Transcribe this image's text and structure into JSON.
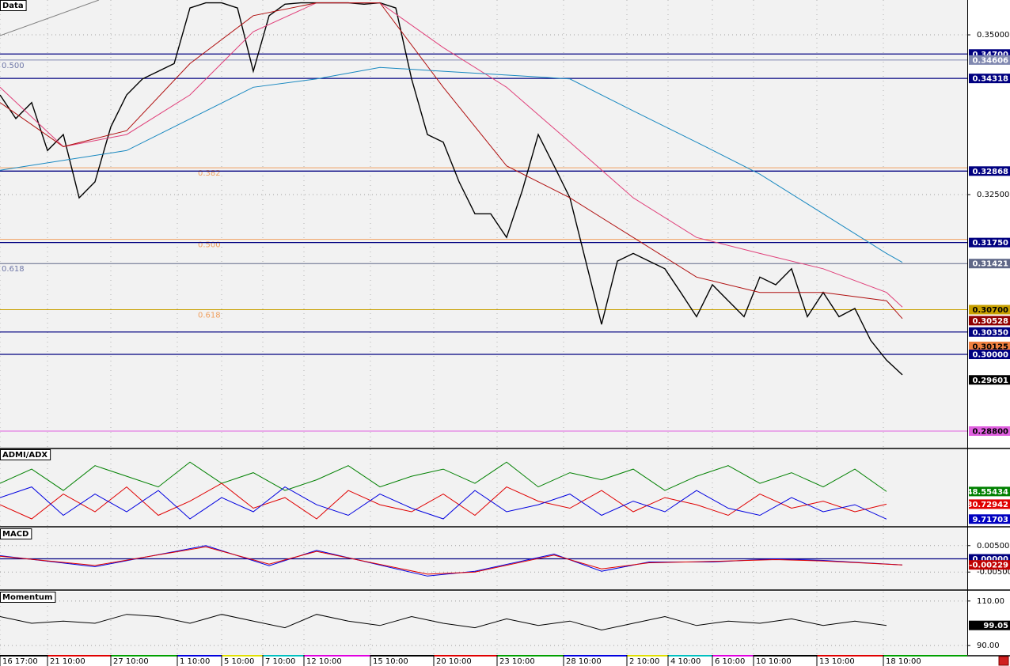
{
  "chart_data": [
    {
      "type": "line",
      "title": "Data",
      "xlim": [
        0,
        305.5
      ],
      "xticks": [
        {
          "value": 0,
          "label": "16 17:00"
        },
        {
          "value": 15,
          "label": "21 10:00"
        },
        {
          "value": 35,
          "label": "27 10:00"
        },
        {
          "value": 56,
          "label": "1 10:00"
        },
        {
          "value": 70,
          "label": "5 10:00"
        },
        {
          "value": 83,
          "label": "7 10:00"
        },
        {
          "value": 96,
          "label": "12 10:00"
        },
        {
          "value": 117,
          "label": "15 10:00"
        },
        {
          "value": 137,
          "label": "20 10:00"
        },
        {
          "value": 157,
          "label": "23 10:00"
        },
        {
          "value": 178,
          "label": "28 10:00"
        },
        {
          "value": 198,
          "label": "2 10:00"
        },
        {
          "value": 211,
          "label": "4 10:00"
        },
        {
          "value": 225,
          "label": "6 10:00"
        },
        {
          "value": 238,
          "label": "10 10:00"
        },
        {
          "value": 258,
          "label": "13 10:00"
        },
        {
          "value": 279,
          "label": "18 10:00"
        }
      ],
      "ylim": [
        0.2854,
        0.35545
      ],
      "yticks": [
        {
          "value": 0.35,
          "label": "0.35000"
        },
        {
          "value": 0.325,
          "label": "0.32500"
        }
      ],
      "grid": true,
      "x": [
        0,
        5,
        10,
        15,
        20,
        25,
        30,
        35,
        40,
        45,
        50,
        55,
        60,
        65,
        70,
        75,
        80,
        85,
        90,
        95,
        100,
        105,
        110,
        115,
        120,
        125,
        130,
        135,
        140,
        145,
        150,
        155,
        160,
        165,
        170,
        175,
        180,
        185,
        190,
        195,
        200,
        205,
        210,
        215,
        220,
        225,
        230,
        235,
        240,
        245,
        250,
        255,
        260,
        265,
        270,
        275,
        280,
        285
      ],
      "series": [
        {
          "color": "#000000",
          "values": [
            0.3406,
            0.3369,
            0.3394,
            0.3319,
            0.3344,
            0.3245,
            0.327,
            0.3356,
            0.3406,
            0.3431,
            0.3443,
            0.3455,
            0.3542,
            0.355,
            0.355,
            0.3542,
            0.3443,
            0.353,
            0.3548,
            0.355,
            0.355,
            0.355,
            0.355,
            0.3548,
            0.355,
            0.3542,
            0.3431,
            0.3344,
            0.3332,
            0.327,
            0.322,
            0.322,
            0.3183,
            0.3257,
            0.3344,
            0.3295,
            0.3245,
            0.3146,
            0.3047,
            0.3146,
            0.3158,
            0.3146,
            0.3134,
            0.3097,
            0.3059,
            0.3109,
            0.3084,
            0.3059,
            0.3121,
            0.3109,
            0.3134,
            0.3059,
            0.3097,
            0.3059,
            0.3072,
            0.3022,
            0.2991,
            0.2968
          ]
        },
        {
          "color": "#e0407a",
          "x": [
            0,
            20,
            40,
            60,
            80,
            100,
            120,
            140,
            160,
            180,
            200,
            220,
            240,
            260,
            280,
            285
          ],
          "values": [
            0.3418,
            0.3325,
            0.3344,
            0.3406,
            0.3505,
            0.355,
            0.355,
            0.348,
            0.3418,
            0.3332,
            0.3245,
            0.3183,
            0.3158,
            0.3134,
            0.3097,
            0.3074
          ]
        },
        {
          "color": "#b01010",
          "x": [
            0,
            20,
            40,
            60,
            80,
            100,
            120,
            140,
            160,
            180,
            200,
            220,
            240,
            260,
            280,
            285
          ],
          "values": [
            0.3394,
            0.3325,
            0.335,
            0.3455,
            0.353,
            0.355,
            0.355,
            0.3418,
            0.3295,
            0.3245,
            0.3183,
            0.3121,
            0.3097,
            0.3097,
            0.3084,
            0.3056
          ]
        },
        {
          "color": "#1888c0",
          "x": [
            0,
            40,
            80,
            100,
            120,
            140,
            160,
            180,
            200,
            220,
            240,
            260,
            280,
            285
          ],
          "values": [
            0.3288,
            0.3319,
            0.3418,
            0.3431,
            0.3449,
            0.3443,
            0.3437,
            0.3431,
            0.3381,
            0.3332,
            0.3282,
            0.322,
            0.3158,
            0.3144
          ]
        }
      ],
      "levels": [
        {
          "value": 0.347,
          "label": "0.34700",
          "color": "#000080",
          "line": true
        },
        {
          "value": 0.34606,
          "label": "0.34606",
          "color": "#8088b0",
          "line": true
        },
        {
          "value": 0.34318,
          "label": "0.34318",
          "color": "#000080",
          "line": true
        },
        {
          "value": 0.32868,
          "label": "0.32868",
          "color": "#000080",
          "line": true
        },
        {
          "value": 0.3175,
          "label": "0.31750",
          "color": "#000080",
          "line": true
        },
        {
          "value": 0.31421,
          "label": "0.31421",
          "color": "#606888",
          "line": true
        },
        {
          "value": 0.307,
          "label": "0.30700",
          "color": "#c8a000",
          "line": true
        },
        {
          "value": 0.30528,
          "label": "0.30528",
          "color": "#900000",
          "line": false
        },
        {
          "value": 0.3035,
          "label": "0.30350",
          "color": "#000080",
          "line": true
        },
        {
          "value": 0.30125,
          "label": "0.30125",
          "color": "#f08040",
          "line": false
        },
        {
          "value": 0.3,
          "label": "0.30000",
          "color": "#000080",
          "line": true
        },
        {
          "value": 0.29601,
          "label": "0.29601",
          "color": "#000000",
          "line": false
        },
        {
          "value": 0.288,
          "label": "0.28800",
          "color": "#e060e0",
          "line": true
        }
      ],
      "fib_sets": [
        {
          "color": "#7078a8",
          "line": false,
          "levels": [
            {
              "value": 0.34606,
              "label": "0.500"
            },
            {
              "value": 0.31421,
              "label": "0.618"
            }
          ]
        },
        {
          "color": "#f0a060",
          "line": true,
          "levels": [
            {
              "value": 0.3292,
              "label": "0.382"
            },
            {
              "value": 0.318,
              "label": "0.500"
            },
            {
              "value": 0.307,
              "label": "0.618"
            }
          ]
        }
      ]
    },
    {
      "type": "line",
      "title": "ADMI/ADX",
      "ylim": [
        0,
        108
      ],
      "x": [
        0,
        10,
        20,
        30,
        40,
        50,
        60,
        70,
        80,
        90,
        100,
        110,
        120,
        130,
        140,
        150,
        160,
        170,
        180,
        190,
        200,
        210,
        220,
        230,
        240,
        250,
        260,
        270,
        280
      ],
      "series": [
        {
          "color": "#008000",
          "values": [
            60,
            80,
            50,
            85,
            70,
            55,
            90,
            60,
            75,
            50,
            65,
            85,
            55,
            70,
            80,
            60,
            90,
            55,
            75,
            65,
            80,
            50,
            70,
            85,
            60,
            75,
            55,
            80,
            48.55434
          ]
        },
        {
          "color": "#e00000",
          "values": [
            30,
            10,
            45,
            20,
            55,
            15,
            35,
            60,
            25,
            40,
            10,
            50,
            30,
            20,
            45,
            15,
            55,
            35,
            25,
            50,
            20,
            40,
            30,
            15,
            45,
            25,
            35,
            20,
            30.72942
          ]
        },
        {
          "color": "#0000e0",
          "values": [
            40,
            55,
            15,
            45,
            20,
            50,
            10,
            40,
            20,
            55,
            30,
            15,
            45,
            25,
            10,
            50,
            20,
            30,
            45,
            15,
            35,
            20,
            50,
            25,
            15,
            40,
            20,
            30,
            9.71703
          ]
        }
      ],
      "levels": [
        {
          "value": 48.55434,
          "label": "48.55434",
          "color": "#008000",
          "line": false
        },
        {
          "value": 30.72942,
          "label": "30.72942",
          "color": "#e00000",
          "line": false
        },
        {
          "value": 9.71703,
          "label": "9.71703",
          "color": "#0000c0",
          "line": false
        }
      ]
    },
    {
      "type": "line",
      "title": "MACD",
      "ylim": [
        -0.0115,
        0.0115
      ],
      "yticks": [
        {
          "value": 0.005,
          "label": "0.00500"
        },
        {
          "value": -0.005,
          "label": "-0.00500"
        }
      ],
      "grid": true,
      "x": [
        0,
        30,
        65,
        85,
        100,
        135,
        150,
        175,
        190,
        205,
        225,
        245,
        260,
        285
      ],
      "series": [
        {
          "color": "#0000e0",
          "values": [
            0.0012,
            -0.003,
            0.005,
            -0.0026,
            0.0032,
            -0.0065,
            -0.0047,
            0.0018,
            -0.0047,
            -0.0012,
            -0.0012,
            0,
            -0.0006,
            -0.0023
          ]
        },
        {
          "color": "#e00000",
          "values": [
            0.001,
            -0.0025,
            0.0045,
            -0.002,
            0.0028,
            -0.0058,
            -0.005,
            0.0014,
            -0.0038,
            -0.0015,
            -0.001,
            -0.0003,
            -0.0008,
            -0.00229
          ]
        }
      ],
      "levels": [
        {
          "value": 0,
          "label": "0.00000",
          "color": "#000080",
          "line": true
        },
        {
          "value": -0.00229,
          "label": "-0.00229",
          "color": "#c00000",
          "line": false
        }
      ]
    },
    {
      "type": "line",
      "title": "Momentum",
      "ylim": [
        85.8,
        114.2
      ],
      "yticks": [
        {
          "value": 110,
          "label": "110.00"
        },
        {
          "value": 90,
          "label": "90.00"
        }
      ],
      "grid": true,
      "x": [
        0,
        10,
        20,
        30,
        40,
        50,
        60,
        70,
        80,
        90,
        100,
        110,
        120,
        130,
        140,
        150,
        160,
        170,
        180,
        190,
        200,
        210,
        220,
        230,
        240,
        250,
        260,
        270,
        280
      ],
      "series": [
        {
          "color": "#000000",
          "values": [
            103,
            100,
            101,
            100,
            104,
            103,
            100,
            104,
            101,
            98,
            104,
            101,
            99,
            103,
            100,
            98,
            102,
            99,
            101,
            97,
            100,
            103,
            99,
            101,
            100,
            102,
            99,
            101,
            99.05
          ]
        }
      ],
      "levels": [
        {
          "value": 99.05,
          "label": "99.05",
          "color": "#000000",
          "line": false
        }
      ]
    }
  ]
}
